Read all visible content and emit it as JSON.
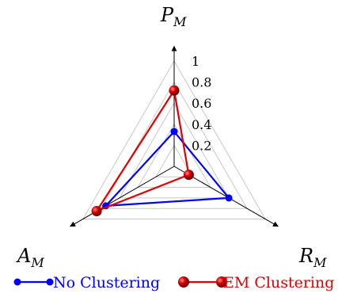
{
  "chart_data": {
    "type": "radar",
    "axes": [
      {
        "key": "P",
        "label": "P",
        "sub": "M"
      },
      {
        "key": "R",
        "label": "R",
        "sub": "M"
      },
      {
        "key": "A",
        "label": "A",
        "sub": "M"
      }
    ],
    "r_range": [
      0,
      1
    ],
    "ticks": [
      "0.2",
      "0.4",
      "0.6",
      "0.8",
      "1"
    ],
    "tick_values": [
      0.2,
      0.4,
      0.6,
      0.8,
      1.0
    ],
    "grid": true,
    "legend_position": "bottom",
    "series": [
      {
        "name": "No Clustering",
        "color": "#0000ff",
        "values": [
          0.33,
          0.6,
          0.75
        ]
      },
      {
        "name": "EM Clustering",
        "color": "#e00000",
        "values": [
          0.72,
          0.16,
          0.85
        ]
      }
    ]
  }
}
